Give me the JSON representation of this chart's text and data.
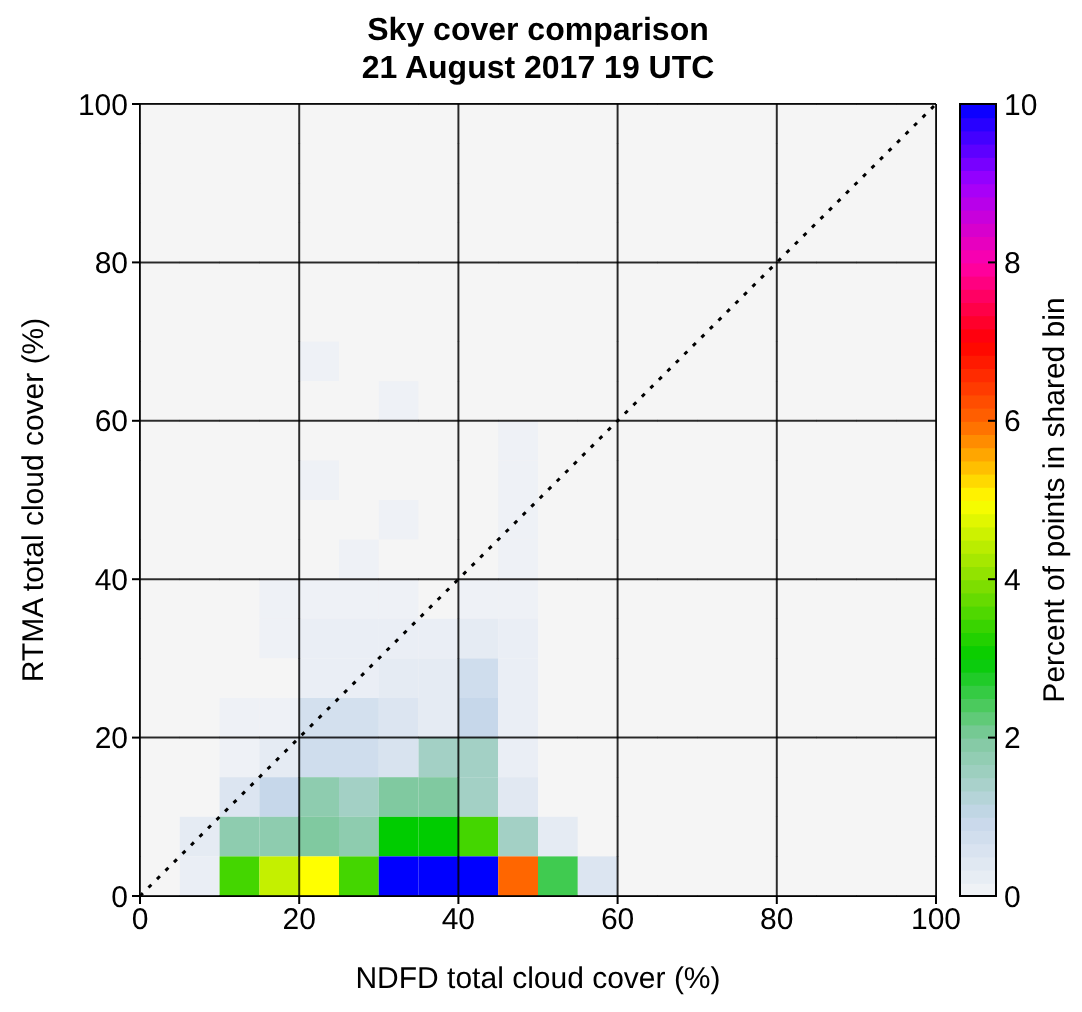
{
  "chart_data": {
    "type": "heatmap",
    "title": "Sky cover comparison",
    "subtitle": "21 August 2017 19 UTC",
    "xlabel": "NDFD total cloud cover (%)",
    "ylabel": "RTMA total cloud cover (%)",
    "clabel": "Percent of points in shared bin",
    "xlim": [
      0,
      100
    ],
    "ylim": [
      0,
      100
    ],
    "xticks": [
      0,
      20,
      40,
      60,
      80,
      100
    ],
    "yticks": [
      0,
      20,
      40,
      60,
      80,
      100
    ],
    "grid": true,
    "clim": [
      0,
      10
    ],
    "cticks": [
      0,
      2,
      4,
      6,
      8,
      10
    ],
    "cells": [
      [
        0,
        0,
        0,
        0,
        0,
        0,
        0,
        0,
        0,
        0,
        0,
        0,
        0,
        0,
        0,
        0,
        0,
        0,
        0,
        0
      ],
      [
        0,
        0,
        0,
        0,
        0,
        0,
        0,
        0,
        0,
        0,
        0,
        0,
        0,
        0,
        0,
        0,
        0,
        0,
        0,
        0
      ],
      [
        0,
        0,
        0,
        0,
        0,
        0,
        0,
        0,
        0,
        0,
        0,
        0,
        0,
        0,
        0,
        0,
        0,
        0,
        0,
        0
      ],
      [
        0,
        0,
        0,
        0,
        0,
        0,
        0,
        0,
        0,
        0,
        0,
        0,
        0,
        0,
        0,
        0,
        0,
        0,
        0,
        0
      ],
      [
        0,
        0,
        0,
        0,
        0,
        0,
        0,
        0,
        0,
        0,
        0,
        0,
        0,
        0,
        0,
        0,
        0,
        0,
        0,
        0
      ],
      [
        0,
        0,
        0,
        0,
        0,
        0,
        0,
        0,
        0,
        0,
        0,
        0,
        0,
        0,
        0,
        0,
        0,
        0,
        0,
        0
      ],
      [
        0,
        0,
        0,
        0,
        0.1,
        0,
        0,
        0,
        0,
        0,
        0,
        0,
        0,
        0,
        0,
        0,
        0,
        0,
        0,
        0
      ],
      [
        0,
        0,
        0,
        0,
        0,
        0,
        0.1,
        0,
        0,
        0,
        0,
        0,
        0,
        0,
        0,
        0,
        0,
        0,
        0,
        0
      ],
      [
        0,
        0,
        0,
        0,
        0,
        0,
        0,
        0,
        0,
        0.1,
        0,
        0,
        0,
        0,
        0,
        0,
        0,
        0,
        0,
        0
      ],
      [
        0,
        0,
        0,
        0,
        0.1,
        0,
        0,
        0,
        0,
        0.1,
        0,
        0,
        0,
        0,
        0,
        0,
        0,
        0,
        0,
        0
      ],
      [
        0,
        0,
        0,
        0,
        0,
        0,
        0.1,
        0,
        0,
        0.1,
        0,
        0,
        0,
        0,
        0,
        0,
        0,
        0,
        0,
        0
      ],
      [
        0,
        0,
        0,
        0,
        0,
        0.1,
        0,
        0,
        0,
        0.1,
        0,
        0,
        0,
        0,
        0,
        0,
        0,
        0,
        0,
        0
      ],
      [
        0,
        0,
        0,
        0.1,
        0.1,
        0.1,
        0.1,
        0,
        0.1,
        0.1,
        0,
        0,
        0,
        0,
        0,
        0,
        0,
        0,
        0,
        0
      ],
      [
        0,
        0,
        0,
        0.1,
        0.2,
        0.2,
        0.2,
        0.2,
        0.3,
        0.2,
        0,
        0,
        0,
        0,
        0,
        0,
        0,
        0,
        0,
        0
      ],
      [
        0,
        0,
        0,
        0,
        0.2,
        0.2,
        0.3,
        0.3,
        0.8,
        0.2,
        0,
        0,
        0,
        0,
        0,
        0,
        0,
        0,
        0,
        0
      ],
      [
        0,
        0,
        0.1,
        0.1,
        0.7,
        0.7,
        0.5,
        0.3,
        1,
        0.2,
        0,
        0,
        0,
        0,
        0,
        0,
        0,
        0,
        0,
        0
      ],
      [
        0,
        0,
        0.1,
        0.3,
        0.8,
        0.8,
        0.6,
        1.5,
        1.5,
        0.2,
        0,
        0,
        0,
        0,
        0,
        0,
        0,
        0,
        0,
        0
      ],
      [
        0,
        0,
        0.5,
        1,
        1.8,
        1.5,
        2,
        2,
        1.5,
        0.4,
        0,
        0,
        0,
        0,
        0,
        0,
        0,
        0,
        0,
        0
      ],
      [
        0,
        0.3,
        1.8,
        1.8,
        2,
        1.8,
        3,
        3,
        3.5,
        1.5,
        0.3,
        0,
        0,
        0,
        0,
        0,
        0,
        0,
        0,
        0
      ],
      [
        0,
        0.2,
        3.5,
        4.5,
        5,
        3.5,
        10,
        10,
        10,
        6,
        2.5,
        0.5,
        0,
        0,
        0,
        0,
        0,
        0,
        0,
        0
      ]
    ],
    "series": [
      {
        "type": "line",
        "x": [
          0,
          100
        ],
        "values": [
          0,
          100
        ],
        "color": "#000000",
        "line_style": "dotted"
      }
    ]
  }
}
